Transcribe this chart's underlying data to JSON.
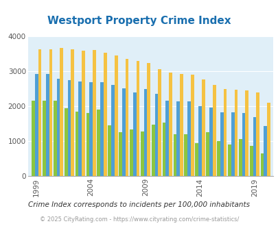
{
  "title": "Westport Property Crime Index",
  "title_color": "#1a6faf",
  "subtitle": "Crime Index corresponds to incidents per 100,000 inhabitants",
  "footer": "© 2025 CityRating.com - https://www.cityrating.com/crime-statistics/",
  "years": [
    1999,
    2000,
    2001,
    2002,
    2003,
    2004,
    2005,
    2006,
    2007,
    2008,
    2009,
    2010,
    2011,
    2012,
    2013,
    2014,
    2015,
    2016,
    2017,
    2018,
    2019,
    2020
  ],
  "westport": [
    2150,
    2150,
    2150,
    1950,
    1850,
    1800,
    1900,
    1450,
    1250,
    1330,
    1270,
    1480,
    1540,
    1200,
    1200,
    950,
    1260,
    1000,
    900,
    1070,
    870,
    650
  ],
  "connecticut": [
    2920,
    2920,
    2780,
    2750,
    2700,
    2680,
    2680,
    2600,
    2510,
    2400,
    2490,
    2360,
    2160,
    2140,
    2140,
    2010,
    1960,
    1820,
    1820,
    1800,
    1680,
    1430
  ],
  "national": [
    3620,
    3620,
    3670,
    3620,
    3580,
    3610,
    3520,
    3440,
    3360,
    3300,
    3230,
    3050,
    2960,
    2930,
    2900,
    2760,
    2610,
    2500,
    2480,
    2450,
    2390,
    2100
  ],
  "westport_color": "#8cc63f",
  "connecticut_color": "#4f9fd5",
  "national_color": "#f5c242",
  "bg_color": "#e0eff8",
  "ylim": [
    0,
    4000
  ],
  "yticks": [
    0,
    1000,
    2000,
    3000,
    4000
  ],
  "grid_color": "#ffffff",
  "labeled_years": [
    1999,
    2004,
    2009,
    2014,
    2019
  ],
  "figsize": [
    4.06,
    3.3
  ],
  "dpi": 100
}
